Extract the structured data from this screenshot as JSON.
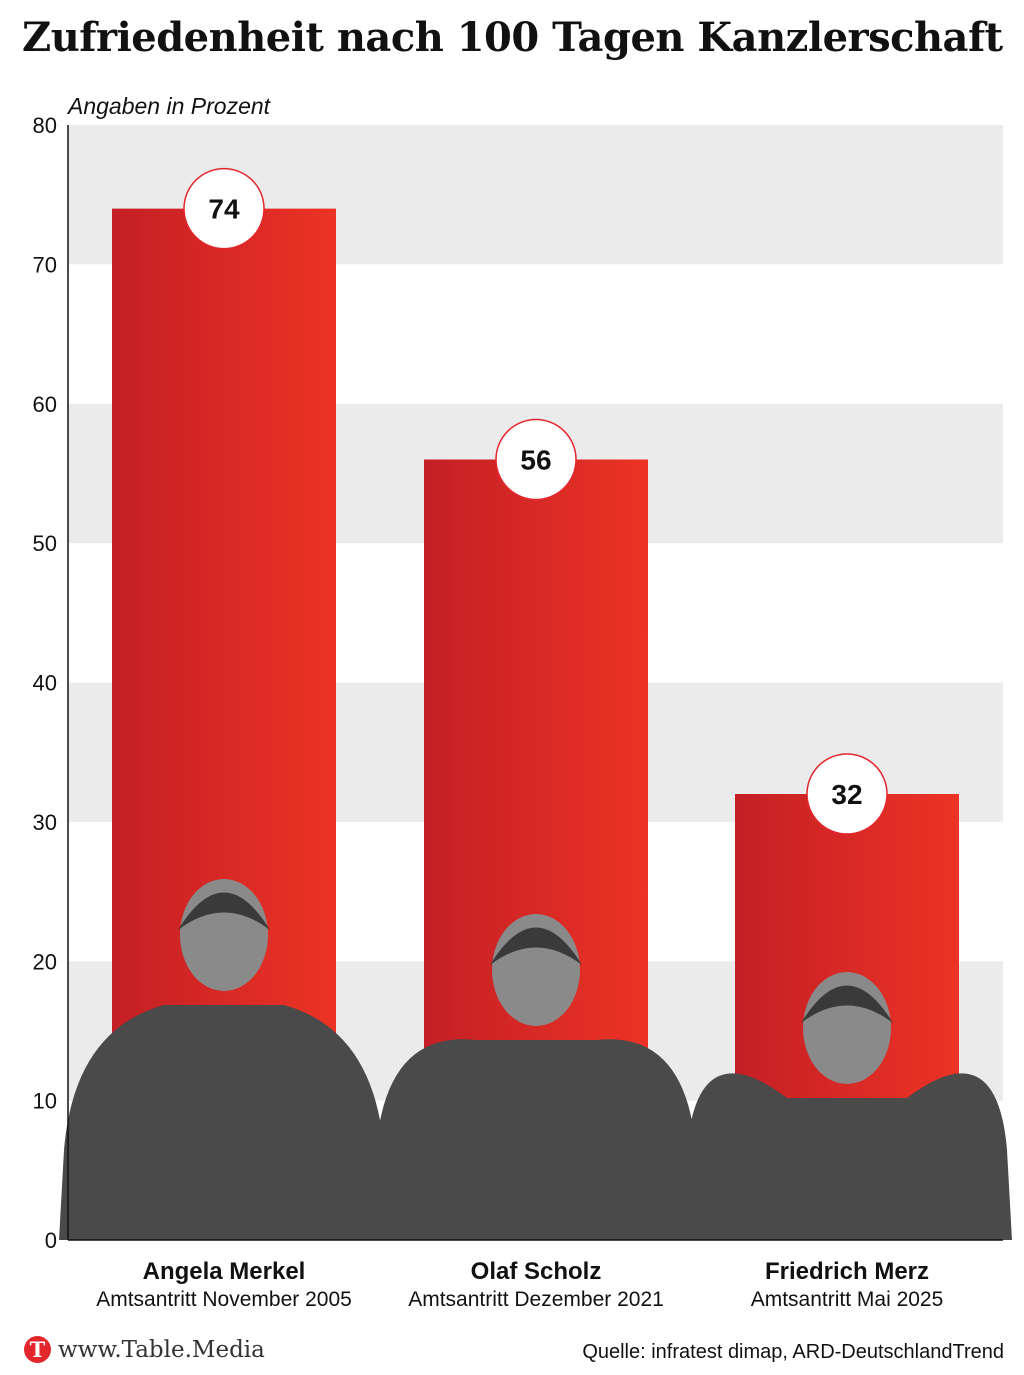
{
  "chart_data": {
    "type": "bar",
    "title": "Zufriedenheit nach 100 Tagen Kanzlerschaft",
    "ylabel": "Angaben in Prozent",
    "xlabel": "",
    "ylim": [
      0,
      80
    ],
    "yticks": [
      0,
      10,
      20,
      30,
      40,
      50,
      60,
      70,
      80
    ],
    "categories": [
      "Angela Merkel",
      "Olaf Scholz",
      "Friedrich Merz"
    ],
    "subtitles": [
      "Amtsantritt November 2005",
      "Amtsantritt Dezember 2021",
      "Amtsantritt Mai 2025"
    ],
    "values": [
      74,
      56,
      32
    ],
    "bar_color_start": "#c41f25",
    "bar_color_end": "#ec3325",
    "band_color": "#ebebeb"
  },
  "footer": {
    "logo_letter": "T",
    "website": "www.Table.Media",
    "source": "Quelle: infratest dimap, ARD-DeutschlandTrend"
  }
}
